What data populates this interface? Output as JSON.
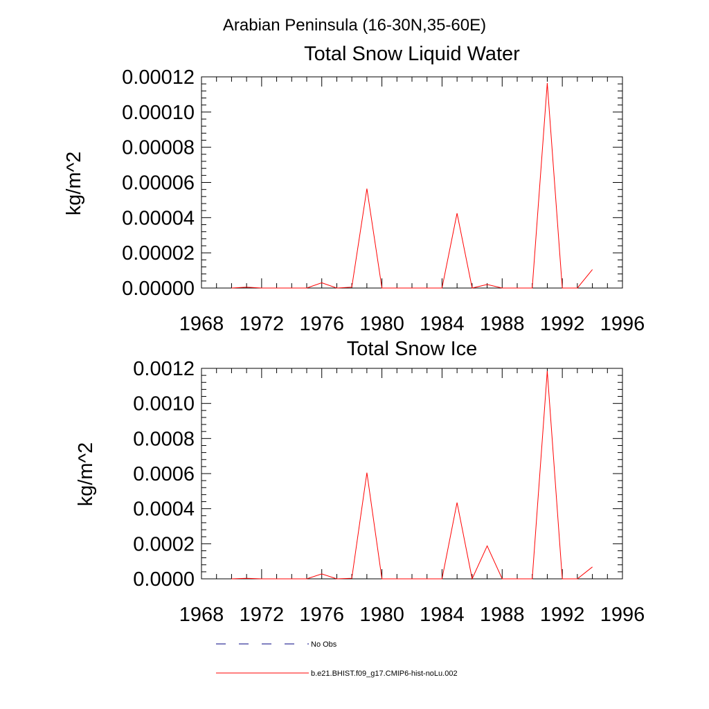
{
  "figure": {
    "suptitle": "Arabian Peninsula (16-30N,35-60E)"
  },
  "colors": {
    "series_line": "#ff0000",
    "obs_line": "#000080",
    "axis": "#000000",
    "background": "#ffffff"
  },
  "legend": {
    "placement": "bottom-center",
    "items": [
      {
        "label": "No Obs",
        "color": "#000080",
        "dash": "dashed"
      },
      {
        "label": "b.e21.BHIST.f09_g17.CMIP6-hist-noLu.002",
        "color": "#ff0000",
        "dash": "solid"
      }
    ]
  },
  "chart_data": [
    {
      "type": "line",
      "title": "Total Snow Liquid Water",
      "xlabel": "",
      "ylabel": "kg/m^2",
      "xlim": [
        1968,
        1996
      ],
      "ylim": [
        0,
        0.00012
      ],
      "xticks": [
        "1968",
        "1972",
        "1976",
        "1980",
        "1984",
        "1988",
        "1992",
        "1996"
      ],
      "yticks": [
        "0.00000",
        "0.00002",
        "0.00004",
        "0.00006",
        "0.00008",
        "0.00010",
        "0.00012"
      ],
      "grid": false,
      "x": [
        1970,
        1971,
        1972,
        1973,
        1974,
        1975,
        1976,
        1977,
        1978,
        1979,
        1980,
        1981,
        1982,
        1983,
        1984,
        1985,
        1986,
        1987,
        1988,
        1989,
        1990,
        1991,
        1992,
        1993,
        1994
      ],
      "series": [
        {
          "name": "b.e21.BHIST.f09_g17.CMIP6-hist-noLu.002",
          "color": "#ff0000",
          "values": [
            0.0,
            5e-07,
            0.0,
            0.0,
            0.0,
            0.0,
            3e-06,
            0.0,
            5e-07,
            5.65e-05,
            0.0,
            0.0,
            0.0,
            0.0,
            0.0,
            4.25e-05,
            0.0,
            2e-06,
            0.0,
            0.0,
            0.0,
            0.0001165,
            0.0,
            0.0,
            1.05e-05
          ]
        }
      ]
    },
    {
      "type": "line",
      "title": "Total Snow Ice",
      "xlabel": "",
      "ylabel": "kg/m^2",
      "xlim": [
        1968,
        1996
      ],
      "ylim": [
        0,
        0.0012
      ],
      "xticks": [
        "1968",
        "1972",
        "1976",
        "1980",
        "1984",
        "1988",
        "1992",
        "1996"
      ],
      "yticks": [
        "0.0000",
        "0.0002",
        "0.0004",
        "0.0006",
        "0.0008",
        "0.0010",
        "0.0012"
      ],
      "grid": false,
      "x": [
        1970,
        1971,
        1972,
        1973,
        1974,
        1975,
        1976,
        1977,
        1978,
        1979,
        1980,
        1981,
        1982,
        1983,
        1984,
        1985,
        1986,
        1987,
        1988,
        1989,
        1990,
        1991,
        1992,
        1993,
        1994
      ],
      "series": [
        {
          "name": "b.e21.BHIST.f09_g17.CMIP6-hist-noLu.002",
          "color": "#ff0000",
          "values": [
            0.0,
            3e-06,
            0.0,
            0.0,
            0.0,
            0.0,
            2.8e-05,
            0.0,
            3e-06,
            0.000605,
            0.0,
            0.0,
            0.0,
            0.0,
            0.0,
            0.000435,
            0.0,
            0.000188,
            0.0,
            0.0,
            0.0,
            0.001185,
            0.0,
            0.0,
            6.8e-05
          ]
        }
      ]
    }
  ]
}
